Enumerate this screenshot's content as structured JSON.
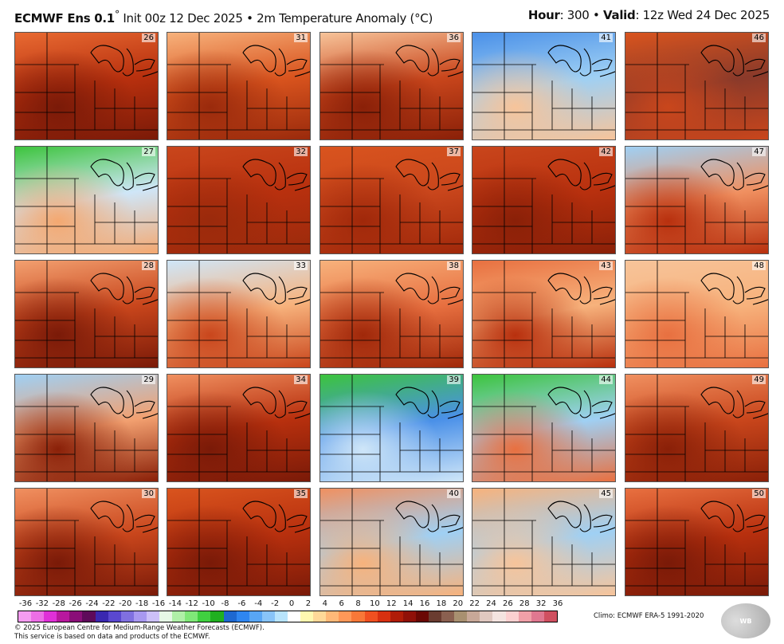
{
  "header": {
    "model": "ECMWF Ens 0.1",
    "degree": "°",
    "init": " Init 00z 12 Dec 2025 • 2m Temperature Anomaly (°C)",
    "hour_label": "Hour",
    "hour": ": 300 • ",
    "valid_label": "Valid",
    "valid": ": 12z Wed 24 Dec 2025"
  },
  "panels": [
    {
      "member": "26",
      "colors": [
        "#e86a32",
        "#b8300e",
        "#7a1a08"
      ]
    },
    {
      "member": "27",
      "colors": [
        "#3cc43c",
        "#cfe6f8",
        "#f4a870"
      ]
    },
    {
      "member": "28",
      "colors": [
        "#f2a070",
        "#c9461c",
        "#7a1a08"
      ]
    },
    {
      "member": "29",
      "colors": [
        "#9fd0f4",
        "#f2a070",
        "#8a2008"
      ]
    },
    {
      "member": "30",
      "colors": [
        "#f09060",
        "#c9461c",
        "#7a1a08"
      ]
    },
    {
      "member": "31",
      "colors": [
        "#f7b27c",
        "#d9541e",
        "#9a2a0c"
      ]
    },
    {
      "member": "32",
      "colors": [
        "#c9461c",
        "#b8300e",
        "#9a2a0c"
      ]
    },
    {
      "member": "33",
      "colors": [
        "#cfe6f8",
        "#f7b27c",
        "#c9461c"
      ]
    },
    {
      "member": "34",
      "colors": [
        "#f09060",
        "#b8300e",
        "#7a1a08"
      ]
    },
    {
      "member": "35",
      "colors": [
        "#d9541e",
        "#b8300e",
        "#7a1a08"
      ]
    },
    {
      "member": "36",
      "colors": [
        "#f7c49a",
        "#c9461c",
        "#8a2008"
      ]
    },
    {
      "member": "37",
      "colors": [
        "#d9541e",
        "#c9461c",
        "#a0280a"
      ]
    },
    {
      "member": "38",
      "colors": [
        "#f7b27c",
        "#e87040",
        "#a0280a"
      ]
    },
    {
      "member": "39",
      "colors": [
        "#3cc43c",
        "#4a90e8",
        "#cfe6f8"
      ]
    },
    {
      "member": "40",
      "colors": [
        "#f09060",
        "#9fd0f4",
        "#f7b27c"
      ]
    },
    {
      "member": "41",
      "colors": [
        "#4a90e8",
        "#9fd0f4",
        "#f7c49a"
      ]
    },
    {
      "member": "42",
      "colors": [
        "#c9461c",
        "#b8300e",
        "#8a2008"
      ]
    },
    {
      "member": "43",
      "colors": [
        "#e87040",
        "#f7b27c",
        "#b8300e"
      ]
    },
    {
      "member": "44",
      "colors": [
        "#3cc43c",
        "#9fd0f4",
        "#e87040"
      ]
    },
    {
      "member": "45",
      "colors": [
        "#f7b27c",
        "#9fd0f4",
        "#f7c49a"
      ]
    },
    {
      "member": "46",
      "colors": [
        "#d9541e",
        "#8a3a2a",
        "#c9461c"
      ]
    },
    {
      "member": "47",
      "colors": [
        "#9fd0f4",
        "#f09060",
        "#b8300e"
      ]
    },
    {
      "member": "48",
      "colors": [
        "#f7c49a",
        "#f7b27c",
        "#e87040"
      ]
    },
    {
      "member": "49",
      "colors": [
        "#f09060",
        "#c9461c",
        "#8a2008"
      ]
    },
    {
      "member": "50",
      "colors": [
        "#e87040",
        "#b8300e",
        "#7a1a08"
      ]
    }
  ],
  "legend": {
    "ticks": [
      "-36",
      "-32",
      "-28",
      "-26",
      "-24",
      "-22",
      "-20",
      "-18",
      "-16",
      "-14",
      "-12",
      "-10",
      "-8",
      "-6",
      "-4",
      "-2",
      "0",
      "2",
      "4",
      "6",
      "8",
      "10",
      "12",
      "14",
      "16",
      "18",
      "20",
      "22",
      "24",
      "26",
      "28",
      "32",
      "36"
    ],
    "colors": [
      "#f49cf0",
      "#ec6ee6",
      "#e030d8",
      "#b8189e",
      "#8a0e78",
      "#5e0a5a",
      "#3a28b0",
      "#5a48d0",
      "#8070e0",
      "#a898f0",
      "#ccc0f8",
      "#e6f8e6",
      "#b0f0a8",
      "#80e878",
      "#40d040",
      "#20b020",
      "#1e68d0",
      "#2f86f0",
      "#58a6f4",
      "#88c4f8",
      "#b8e4fc",
      "#ffffff",
      "#fff8b0",
      "#ffd898",
      "#ffb878",
      "#ff9858",
      "#f87838",
      "#f05020",
      "#d83010",
      "#b01c08",
      "#901008",
      "#6a0804",
      "#6a3c30",
      "#8a6050",
      "#a89070",
      "#c8a898",
      "#e0c8c0",
      "#f4e4e0",
      "#fcd0d0",
      "#f0a0a8",
      "#e07890",
      "#d05060"
    ]
  },
  "climo": "Climo: ECMWF ERA-5 1991-2020",
  "logo": "WEATHERBELL",
  "footer": [
    "© 2025 European Centre for Medium-Range Weather Forecasts (ECMWF).",
    "This service is based on data and products of the ECMWF."
  ]
}
